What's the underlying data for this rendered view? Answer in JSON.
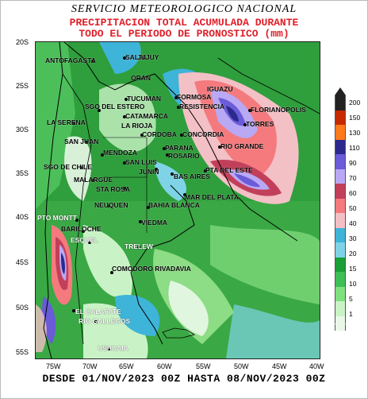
{
  "header": {
    "line1": "SERVICIO METEOROLOGICO NACIONAL",
    "line2": "PRECIPITACION TOTAL ACUMULADA DURANTE",
    "line3": "TODO EL PERIODO DE PRONOSTICO (mm)"
  },
  "footer": "DESDE 01/NOV/2023 00Z HASTA 08/NOV/2023 00Z",
  "lat_labels": [
    "20S",
    "25S",
    "30S",
    "35S",
    "40S",
    "45S",
    "50S",
    "55S"
  ],
  "lon_labels": [
    "75W",
    "70W",
    "65W",
    "60W",
    "55W",
    "50W",
    "45W",
    "40W"
  ],
  "legend": {
    "values": [
      "200",
      "150",
      "130",
      "110",
      "90",
      "70",
      "60",
      "50",
      "40",
      "30",
      "20",
      "15",
      "10",
      "5",
      "1"
    ],
    "colors": [
      "#222222",
      "#c62a00",
      "#ff7a1a",
      "#2b2a8c",
      "#6a5bd8",
      "#b9a8f4",
      "#c23f5a",
      "#f47a7e",
      "#f3c0c6",
      "#3eb4d8",
      "#7fd3e6",
      "#1a9e38",
      "#3dbf55",
      "#7fe07f",
      "#c9f3c6",
      "#eaf8e8"
    ]
  },
  "cities": [
    {
      "name": "ANTOFAGASTA"
    },
    {
      "name": "SALTA"
    },
    {
      "name": "JUJUY"
    },
    {
      "name": "ORAN"
    },
    {
      "name": "TUCUMAN"
    },
    {
      "name": "FORMOSA"
    },
    {
      "name": "IGUAZU"
    },
    {
      "name": "RESISTENCIA"
    },
    {
      "name": "FLORIANOPOLIS"
    },
    {
      "name": "SGO DEL ESTERO"
    },
    {
      "name": "CATAMARCA"
    },
    {
      "name": "LA RIOJA"
    },
    {
      "name": "LA SERENA"
    },
    {
      "name": "CORDOBA"
    },
    {
      "name": "CONCORDIA"
    },
    {
      "name": "TORRES"
    },
    {
      "name": "SAN JUAN"
    },
    {
      "name": "PARANA"
    },
    {
      "name": "RIO GRANDE"
    },
    {
      "name": "MENDOZA"
    },
    {
      "name": "ROSARIO"
    },
    {
      "name": "SAN LUIS"
    },
    {
      "name": "SGO DE CHILE"
    },
    {
      "name": "JUNIN"
    },
    {
      "name": "BAS AIRES"
    },
    {
      "name": "PTA DEL ESTE"
    },
    {
      "name": "MALARGUE"
    },
    {
      "name": "STA ROSA"
    },
    {
      "name": "MAR DEL PLATA"
    },
    {
      "name": "NEUQUEN"
    },
    {
      "name": "BAHIA BLANCA"
    },
    {
      "name": "PTO MONTT"
    },
    {
      "name": "VIEDMA"
    },
    {
      "name": "BARILOCHE"
    },
    {
      "name": "ESQUEL"
    },
    {
      "name": "TRELEW"
    },
    {
      "name": "COMODORO RIVADAVIA"
    },
    {
      "name": "EL CALAFATE"
    },
    {
      "name": "RIO GALLEGOS"
    },
    {
      "name": "USHUAIA"
    }
  ]
}
